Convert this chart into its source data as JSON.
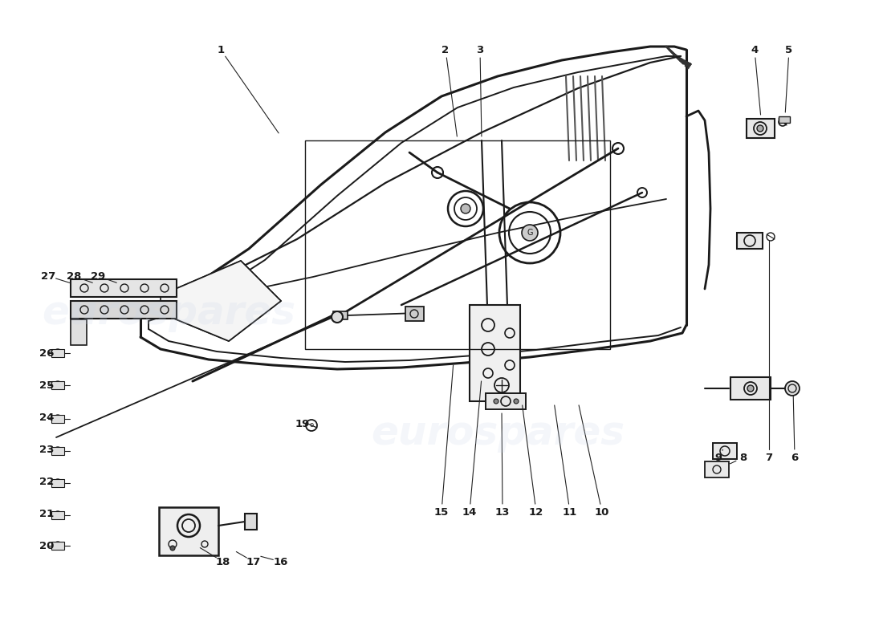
{
  "background_color": "#ffffff",
  "watermark_text": "eurospares",
  "watermark_color": "#c8d4e8",
  "line_color": "#1a1a1a",
  "label_color": "#1a1a1a",
  "fig_width": 11.0,
  "fig_height": 8.0,
  "dpi": 100,
  "label_fontsize": 9.5
}
